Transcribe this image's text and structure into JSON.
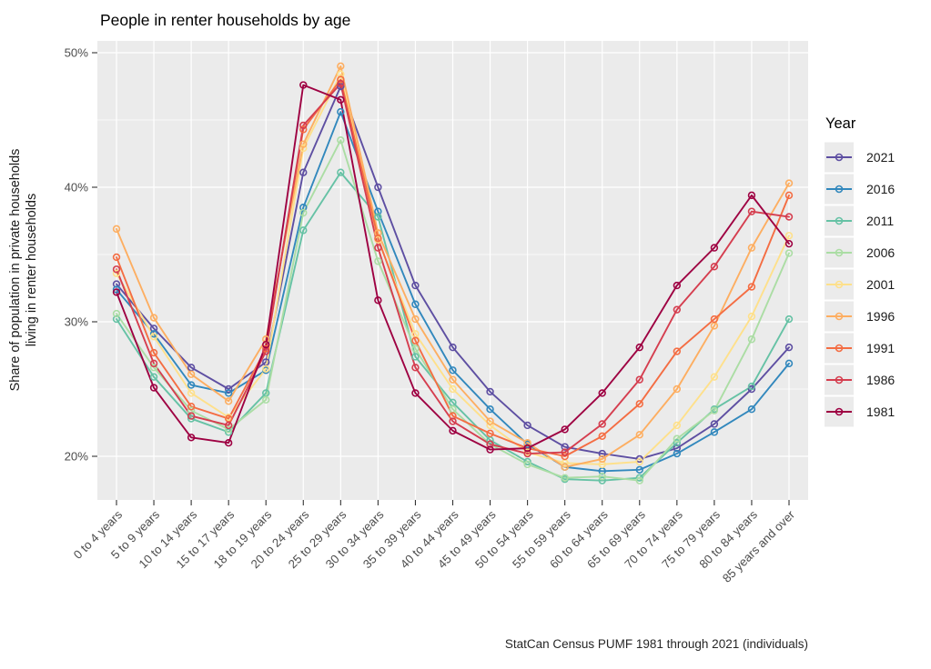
{
  "title": "People in renter households by age",
  "y_axis": {
    "title_line1": "Share of population in private households",
    "title_line2": "living in renter households"
  },
  "caption": "StatCan Census PUMF 1981 through 2021 (individuals)",
  "legend": {
    "title": "Year",
    "entries": [
      "2021",
      "2016",
      "2011",
      "2006",
      "2001",
      "1996",
      "1991",
      "1986",
      "1981"
    ]
  },
  "chart_data": {
    "type": "line",
    "title": "People in renter households by age",
    "xlabel": "",
    "ylabel": "Share of population in private households living in renter households",
    "caption": "StatCan Census PUMF 1981 through 2021 (individuals)",
    "marker": "open-circle",
    "grid": "on",
    "legend_position": "right",
    "panel_background": "#ebebeb",
    "gridline_color": "#ffffff",
    "tick_color": "#333333",
    "tick_label_color": "#4d4d4d",
    "ylim": [
      16.8,
      50.9
    ],
    "y_ticks": [
      {
        "value": 20,
        "label": "20%"
      },
      {
        "value": 30,
        "label": "30%"
      },
      {
        "value": 40,
        "label": "40%"
      },
      {
        "value": 50,
        "label": "50%"
      }
    ],
    "y_minor_gridlines": [
      25,
      35,
      45
    ],
    "categories": [
      "0 to 4 years",
      "5 to 9 years",
      "10 to 14 years",
      "15 to 17 years",
      "18 to 19 years",
      "20 to 24 years",
      "25 to 29 years",
      "30 to 34 years",
      "35 to 39 years",
      "40 to 44 years",
      "45 to 49 years",
      "50 to 54 years",
      "55 to 59 years",
      "60 to 64 years",
      "65 to 69 years",
      "70 to 74 years",
      "75 to 79 years",
      "80 to 84 years",
      "85 years and over"
    ],
    "series": [
      {
        "name": "2021",
        "color": "#5e4fa2",
        "values": [
          32.8,
          29.5,
          26.6,
          25.0,
          27.0,
          41.1,
          47.5,
          40.0,
          32.7,
          28.1,
          24.8,
          22.3,
          20.7,
          20.2,
          19.8,
          20.6,
          22.4,
          25.0,
          28.1
        ]
      },
      {
        "name": "2016",
        "color": "#3288bd",
        "values": [
          32.4,
          29.1,
          25.3,
          24.7,
          26.4,
          38.5,
          45.6,
          38.2,
          31.3,
          26.4,
          23.5,
          20.9,
          19.2,
          18.9,
          19.0,
          20.2,
          21.8,
          23.5,
          26.9
        ]
      },
      {
        "name": "2011",
        "color": "#66c2a5",
        "values": [
          30.2,
          25.9,
          22.8,
          21.8,
          24.7,
          36.8,
          41.1,
          37.8,
          27.4,
          24.0,
          21.2,
          19.6,
          18.3,
          18.2,
          18.4,
          21.0,
          23.5,
          25.2,
          30.2
        ]
      },
      {
        "name": "2006",
        "color": "#abdda4",
        "values": [
          30.6,
          26.6,
          23.4,
          22.0,
          24.2,
          38.1,
          43.5,
          34.5,
          28.0,
          23.5,
          20.9,
          19.4,
          18.4,
          18.5,
          18.2,
          21.3,
          23.4,
          28.7,
          35.1
        ]
      },
      {
        "name": "2001",
        "color": "#fee08b",
        "values": [
          33.6,
          28.9,
          24.7,
          22.9,
          26.5,
          42.9,
          48.4,
          36.1,
          29.1,
          25.0,
          22.3,
          20.3,
          19.5,
          19.4,
          19.6,
          22.3,
          25.9,
          30.4,
          36.4
        ]
      },
      {
        "name": "1996",
        "color": "#fdae61",
        "values": [
          36.9,
          30.3,
          26.1,
          24.1,
          28.7,
          43.2,
          49.0,
          36.6,
          30.2,
          25.7,
          22.6,
          21.0,
          19.2,
          19.8,
          21.6,
          25.0,
          29.7,
          35.5,
          40.3
        ]
      },
      {
        "name": "1991",
        "color": "#f46d43",
        "values": [
          34.8,
          27.7,
          23.7,
          22.8,
          28.0,
          44.3,
          48.0,
          36.2,
          28.6,
          23.0,
          21.7,
          20.6,
          20.0,
          21.5,
          23.9,
          27.8,
          30.2,
          32.6,
          39.4
        ]
      },
      {
        "name": "1986",
        "color": "#d53e4f",
        "values": [
          33.9,
          26.9,
          23.0,
          22.3,
          27.8,
          44.6,
          47.7,
          35.5,
          26.6,
          22.6,
          20.9,
          20.2,
          20.3,
          22.4,
          25.7,
          30.9,
          34.1,
          38.2,
          37.8
        ]
      },
      {
        "name": "1981",
        "color": "#9e0142",
        "values": [
          32.2,
          25.1,
          21.4,
          21.0,
          28.3,
          47.6,
          46.5,
          31.6,
          24.7,
          21.9,
          20.5,
          20.6,
          22.0,
          24.7,
          28.1,
          32.7,
          35.5,
          39.4,
          35.8
        ]
      }
    ]
  }
}
